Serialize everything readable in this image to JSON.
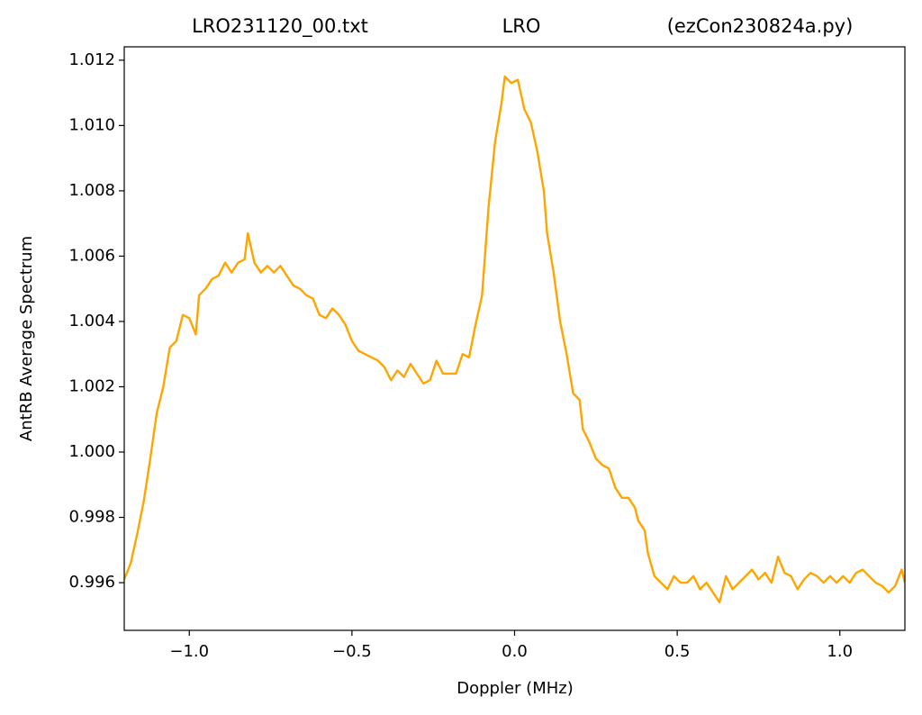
{
  "chart_data": {
    "type": "line",
    "title": [
      "LRO231120_00.txt",
      "LRO",
      "(ezCon230824a.py)"
    ],
    "x_label": "Doppler (MHz)",
    "y_label": "AntRB Average Spectrum",
    "xlim": [
      -1.2,
      1.2
    ],
    "ylim": [
      0.99454,
      1.01241
    ],
    "xticks": [
      {
        "value": -1.0,
        "label": "−1.0"
      },
      {
        "value": -0.5,
        "label": "−0.5"
      },
      {
        "value": 0.0,
        "label": "0.0"
      },
      {
        "value": 0.5,
        "label": "0.5"
      },
      {
        "value": 1.0,
        "label": "1.0"
      }
    ],
    "yticks": [
      0.996,
      0.998,
      {
        "value": 1.0,
        "label": "1.000"
      },
      1.002,
      1.004,
      1.006,
      1.008,
      {
        "value": 1.01,
        "label": "1.010"
      },
      1.012
    ],
    "grid": false,
    "x": [
      -1.2,
      -1.18,
      -1.16,
      -1.14,
      -1.12,
      -1.1,
      -1.08,
      -1.06,
      -1.04,
      -1.02,
      -1.0,
      -0.98,
      -0.97,
      -0.95,
      -0.93,
      -0.91,
      -0.89,
      -0.87,
      -0.85,
      -0.83,
      -0.82,
      -0.8,
      -0.78,
      -0.76,
      -0.74,
      -0.72,
      -0.7,
      -0.68,
      -0.66,
      -0.64,
      -0.62,
      -0.6,
      -0.58,
      -0.56,
      -0.54,
      -0.52,
      -0.5,
      -0.48,
      -0.46,
      -0.44,
      -0.42,
      -0.4,
      -0.38,
      -0.36,
      -0.34,
      -0.32,
      -0.3,
      -0.28,
      -0.26,
      -0.24,
      -0.22,
      -0.2,
      -0.18,
      -0.16,
      -0.14,
      -0.12,
      -0.1,
      -0.08,
      -0.06,
      -0.04,
      -0.03,
      -0.01,
      0.01,
      0.03,
      0.05,
      0.07,
      0.09,
      0.1,
      0.12,
      0.14,
      0.16,
      0.18,
      0.2,
      0.21,
      0.23,
      0.25,
      0.27,
      0.29,
      0.31,
      0.33,
      0.35,
      0.37,
      0.38,
      0.4,
      0.41,
      0.43,
      0.45,
      0.47,
      0.49,
      0.51,
      0.53,
      0.55,
      0.57,
      0.59,
      0.61,
      0.63,
      0.65,
      0.67,
      0.69,
      0.71,
      0.73,
      0.75,
      0.77,
      0.79,
      0.81,
      0.83,
      0.85,
      0.87,
      0.89,
      0.91,
      0.93,
      0.95,
      0.97,
      0.99,
      1.01,
      1.03,
      1.05,
      1.07,
      1.09,
      1.11,
      1.13,
      1.15,
      1.17,
      1.19,
      1.2
    ],
    "series": [
      {
        "color": "#ffa500",
        "values": [
          0.9961,
          0.9966,
          0.9975,
          0.9985,
          0.9998,
          1.0012,
          1.002,
          1.0032,
          1.0034,
          1.0042,
          1.0041,
          1.0036,
          1.0048,
          1.005,
          1.0053,
          1.0054,
          1.0058,
          1.0055,
          1.0058,
          1.0059,
          1.0067,
          1.0058,
          1.0055,
          1.0057,
          1.0055,
          1.0057,
          1.0054,
          1.0051,
          1.005,
          1.0048,
          1.0047,
          1.0042,
          1.0041,
          1.0044,
          1.0042,
          1.0039,
          1.0034,
          1.0031,
          1.003,
          1.0029,
          1.0028,
          1.0026,
          1.0022,
          1.0025,
          1.0023,
          1.0027,
          1.0024,
          1.0021,
          1.0022,
          1.0028,
          1.0024,
          1.0024,
          1.0024,
          1.003,
          1.0029,
          1.0039,
          1.0048,
          1.0075,
          1.0095,
          1.0107,
          1.0115,
          1.0113,
          1.0114,
          1.0105,
          1.0101,
          1.0092,
          1.008,
          1.0067,
          1.0055,
          1.004,
          1.003,
          1.0018,
          1.0016,
          1.0007,
          1.0003,
          0.9998,
          0.9996,
          0.9995,
          0.9989,
          0.9986,
          0.9986,
          0.9983,
          0.9979,
          0.9976,
          0.9969,
          0.9962,
          0.996,
          0.9958,
          0.9962,
          0.996,
          0.996,
          0.9962,
          0.9958,
          0.996,
          0.9957,
          0.9954,
          0.9962,
          0.9958,
          0.996,
          0.9962,
          0.9964,
          0.9961,
          0.9963,
          0.996,
          0.9968,
          0.9963,
          0.9962,
          0.9958,
          0.9961,
          0.9963,
          0.9962,
          0.996,
          0.9962,
          0.996,
          0.9962,
          0.996,
          0.9963,
          0.9964,
          0.9962,
          0.996,
          0.9959,
          0.9957,
          0.9959,
          0.9964,
          0.996
        ]
      }
    ]
  }
}
